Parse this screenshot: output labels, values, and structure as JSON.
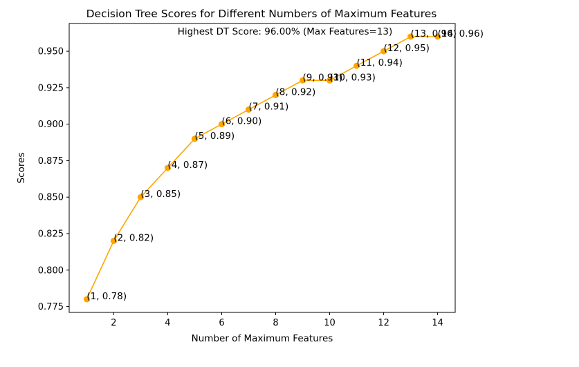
{
  "chart_data": {
    "type": "line",
    "title": "Decision Tree Scores for Different Numbers of Maximum Features",
    "xlabel": "Number of Maximum Features",
    "ylabel": "Scores",
    "x": [
      1,
      2,
      3,
      4,
      5,
      6,
      7,
      8,
      9,
      10,
      11,
      12,
      13,
      14
    ],
    "y": [
      0.78,
      0.82,
      0.85,
      0.87,
      0.89,
      0.9,
      0.91,
      0.92,
      0.93,
      0.93,
      0.94,
      0.95,
      0.96,
      0.96
    ],
    "point_labels": [
      "(1, 0.78)",
      "(2, 0.82)",
      "(3, 0.85)",
      "(4, 0.87)",
      "(5, 0.89)",
      "(6, 0.90)",
      "(7, 0.91)",
      "(8, 0.92)",
      "(9, 0.93)",
      "(10, 0.93)",
      "(11, 0.94)",
      "(12, 0.95)",
      "(13, 0.96)",
      "(14, 0.96)"
    ],
    "annotation": "Highest DT Score: 96.00% (Max Features=13)",
    "xlim": [
      0.35,
      14.65
    ],
    "ylim": [
      0.771,
      0.969
    ],
    "xticks": [
      2,
      4,
      6,
      8,
      10,
      12,
      14
    ],
    "xtick_labels": [
      "2",
      "4",
      "6",
      "8",
      "10",
      "12",
      "14"
    ],
    "yticks": [
      0.775,
      0.8,
      0.825,
      0.85,
      0.875,
      0.9,
      0.925,
      0.95
    ],
    "ytick_labels": [
      "0.775",
      "0.800",
      "0.825",
      "0.850",
      "0.875",
      "0.900",
      "0.925",
      "0.950"
    ],
    "grid": false,
    "line_color": "#ffa500"
  }
}
